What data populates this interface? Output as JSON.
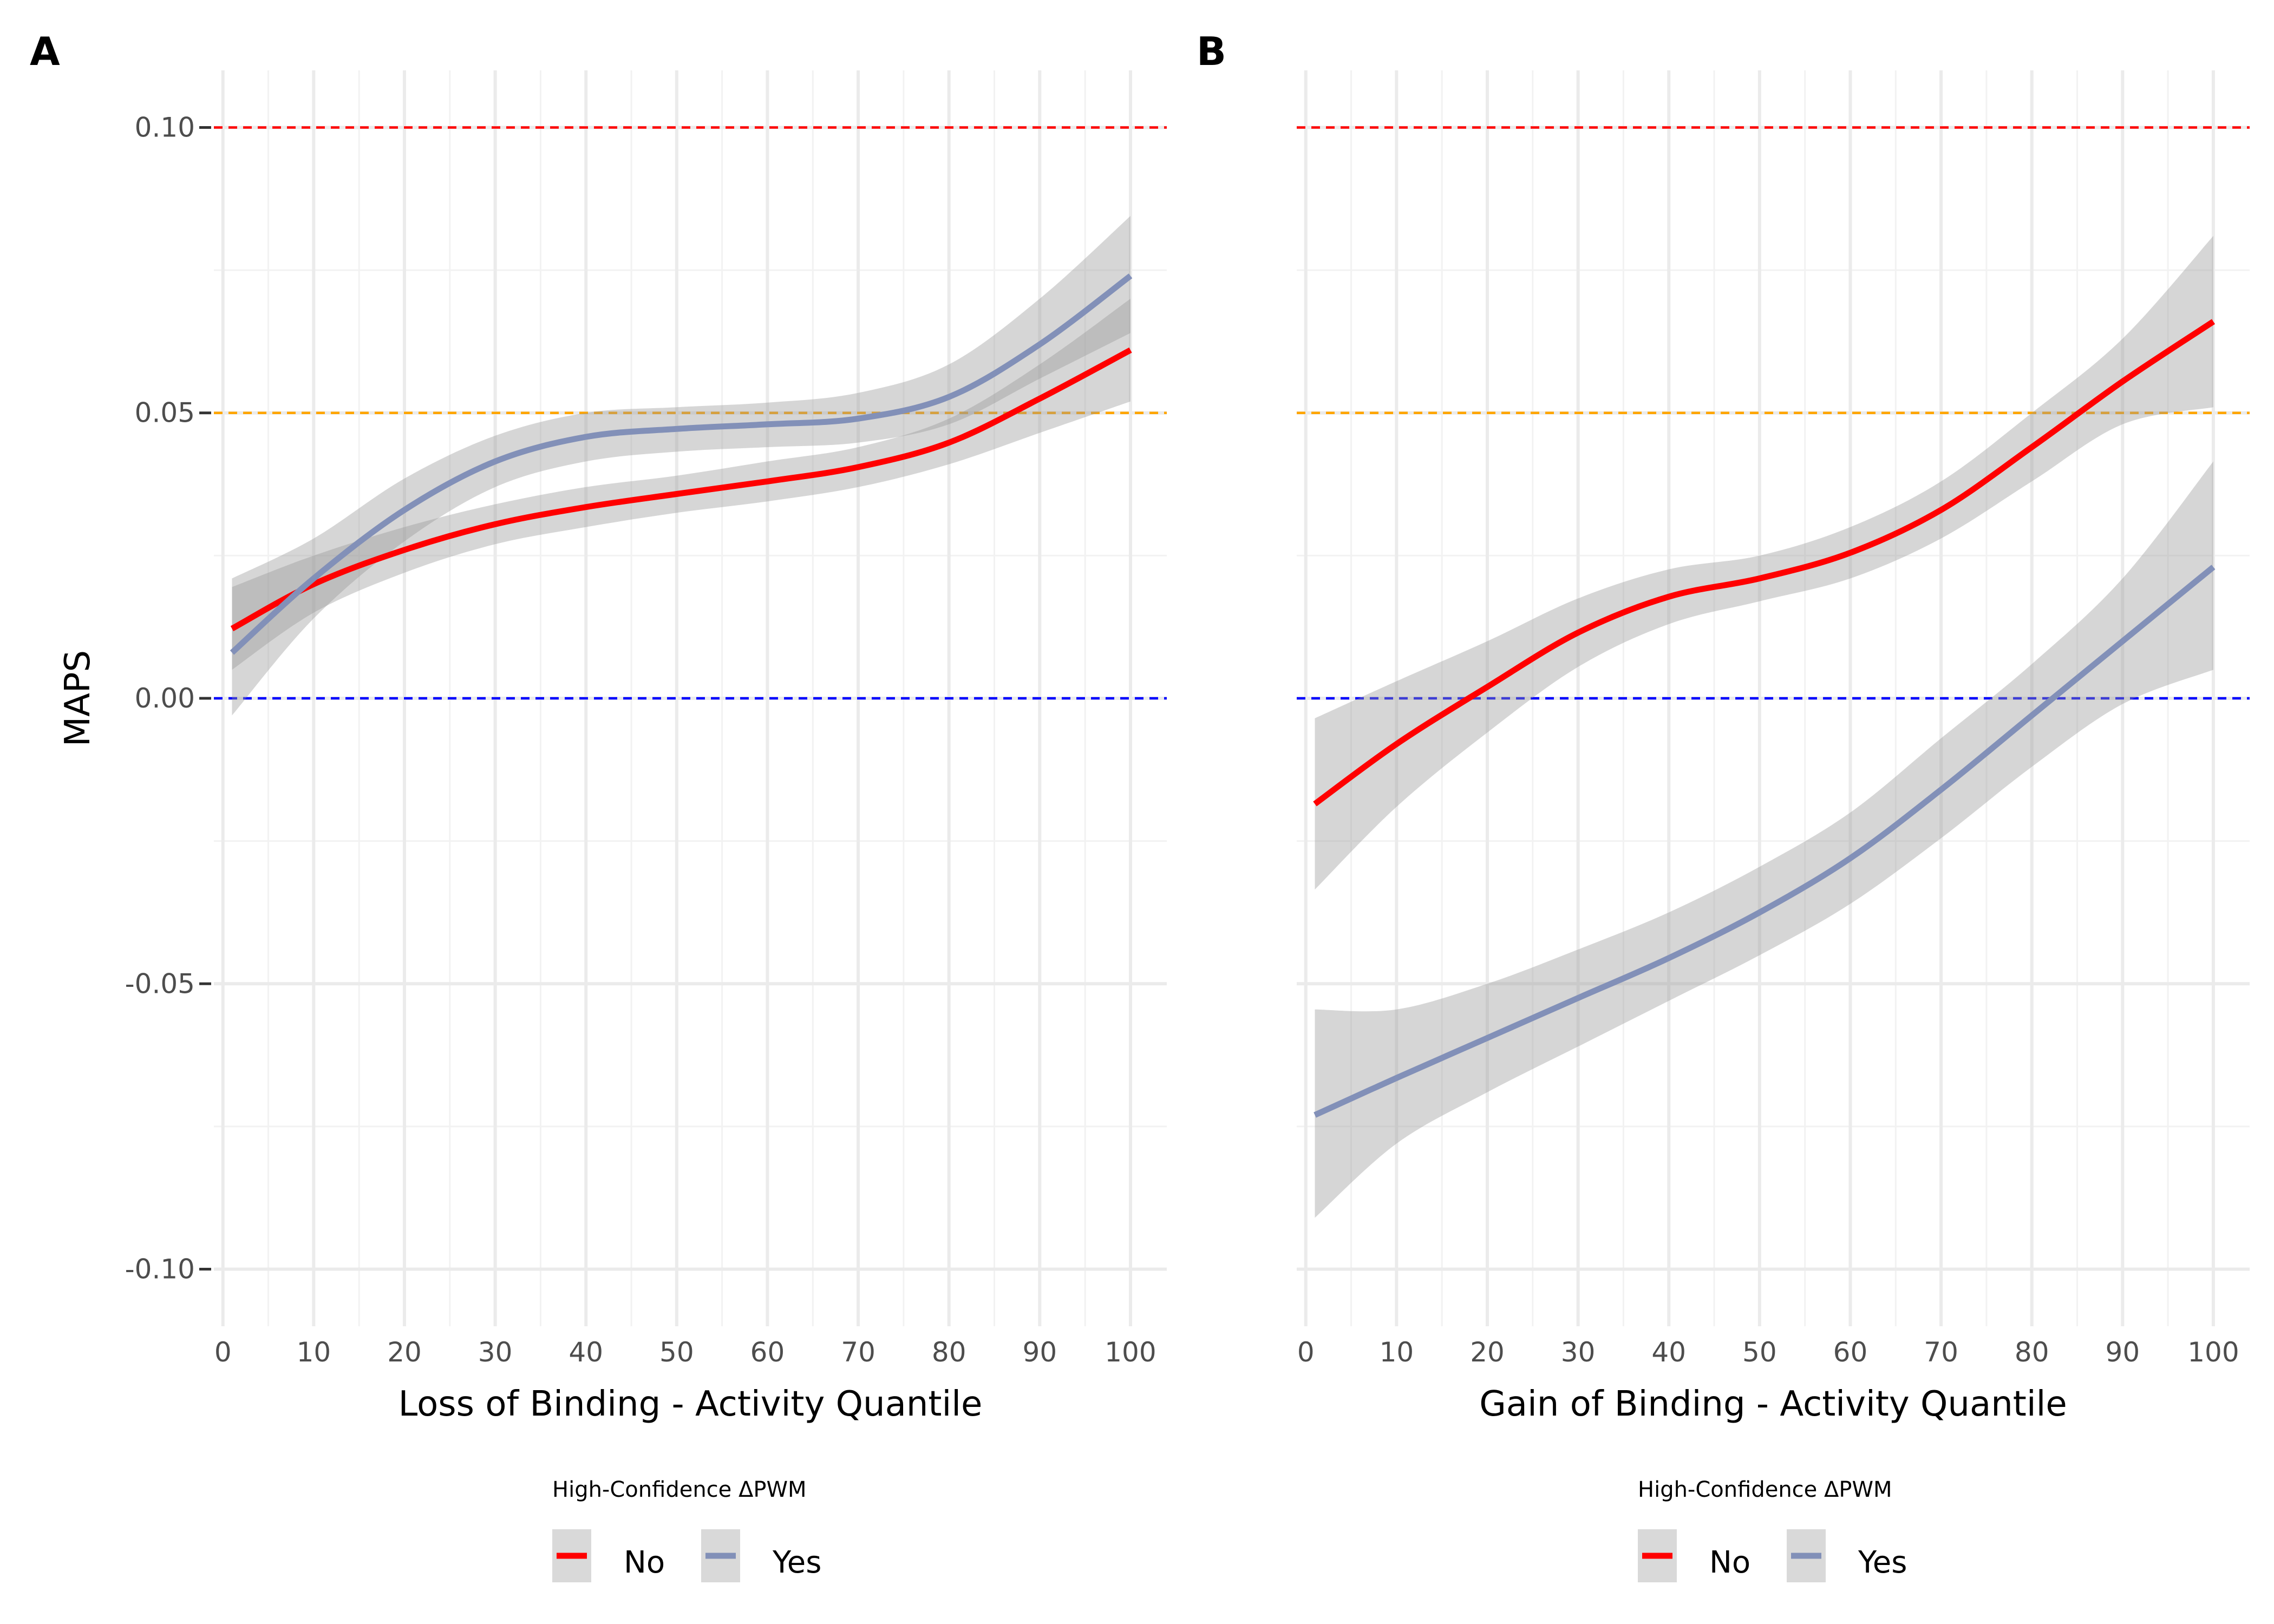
{
  "figure": {
    "panel_labels": [
      "A",
      "B"
    ]
  },
  "chart_data": [
    {
      "panel": "A",
      "type": "line",
      "xlabel": "Loss of Binding - Activity Quantile",
      "ylabel": "MAPS",
      "xlim": [
        -1,
        104
      ],
      "ylim": [
        -0.11,
        0.11
      ],
      "x_ticks": [
        0,
        10,
        20,
        30,
        40,
        50,
        60,
        70,
        80,
        90,
        100
      ],
      "y_ticks": [
        -0.1,
        -0.05,
        0.0,
        0.05,
        0.1
      ],
      "y_tick_labels": [
        "-0.10",
        "-0.05",
        "0.00",
        "0.05",
        "0.10"
      ],
      "grid": true,
      "reference_lines": [
        {
          "y": 0.1,
          "color": "#FF0000",
          "style": "dashed"
        },
        {
          "y": 0.05,
          "color": "#FFA500",
          "style": "dashed"
        },
        {
          "y": 0.0,
          "color": "#0000FF",
          "style": "dashed"
        }
      ],
      "legend": {
        "title": "High-Confidence ΔPWM",
        "position": "bottom",
        "entries": [
          "No",
          "Yes"
        ]
      },
      "series": [
        {
          "name": "No",
          "color": "#FF0000",
          "x": [
            1,
            10,
            20,
            30,
            40,
            50,
            60,
            70,
            80,
            90,
            100
          ],
          "y": [
            0.0122,
            0.02,
            0.026,
            0.0305,
            0.0335,
            0.0358,
            0.038,
            0.0405,
            0.0448,
            0.0525,
            0.061
          ],
          "ci_lower": [
            0.005,
            0.015,
            0.022,
            0.027,
            0.03,
            0.0325,
            0.0345,
            0.037,
            0.041,
            0.0465,
            0.052
          ],
          "ci_upper": [
            0.0195,
            0.025,
            0.03,
            0.034,
            0.037,
            0.039,
            0.0415,
            0.044,
            0.049,
            0.0585,
            0.07
          ]
        },
        {
          "name": "Yes",
          "color": "#8290B8",
          "x": [
            1,
            10,
            20,
            30,
            40,
            50,
            60,
            70,
            80,
            90,
            100
          ],
          "y": [
            0.008,
            0.021,
            0.033,
            0.0415,
            0.0458,
            0.0472,
            0.048,
            0.049,
            0.0528,
            0.062,
            0.074
          ],
          "ci_lower": [
            -0.003,
            0.014,
            0.0275,
            0.037,
            0.0415,
            0.0432,
            0.044,
            0.0448,
            0.048,
            0.056,
            0.064
          ],
          "ci_upper": [
            0.021,
            0.028,
            0.0385,
            0.046,
            0.05,
            0.051,
            0.0518,
            0.0535,
            0.0585,
            0.07,
            0.0845
          ]
        }
      ]
    },
    {
      "panel": "B",
      "type": "line",
      "xlabel": "Gain of Binding - Activity Quantile",
      "xlim": [
        -1,
        104
      ],
      "ylim": [
        -0.11,
        0.11
      ],
      "x_ticks": [
        0,
        10,
        20,
        30,
        40,
        50,
        60,
        70,
        80,
        90,
        100
      ],
      "grid": true,
      "reference_lines": [
        {
          "y": 0.1,
          "color": "#FF0000",
          "style": "dashed"
        },
        {
          "y": 0.05,
          "color": "#FFA500",
          "style": "dashed"
        },
        {
          "y": 0.0,
          "color": "#0000FF",
          "style": "dashed"
        }
      ],
      "legend": {
        "title": "High-Confidence ΔPWM",
        "position": "bottom",
        "entries": [
          "No",
          "Yes"
        ]
      },
      "series": [
        {
          "name": "No",
          "color": "#FF0000",
          "x": [
            1,
            10,
            20,
            30,
            40,
            50,
            60,
            70,
            80,
            90,
            100
          ],
          "y": [
            -0.0185,
            -0.008,
            0.002,
            0.0115,
            0.0178,
            0.021,
            0.0255,
            0.033,
            0.044,
            0.0555,
            0.066
          ],
          "ci_lower": [
            -0.0335,
            -0.019,
            -0.006,
            0.0055,
            0.013,
            0.017,
            0.021,
            0.028,
            0.038,
            0.048,
            0.051
          ],
          "ci_upper": [
            -0.0035,
            0.003,
            0.01,
            0.0175,
            0.0226,
            0.025,
            0.03,
            0.038,
            0.05,
            0.063,
            0.081
          ]
        },
        {
          "name": "Yes",
          "color": "#8290B8",
          "x": [
            1,
            10,
            20,
            30,
            40,
            50,
            60,
            70,
            80,
            90,
            100
          ],
          "y": [
            -0.073,
            -0.0665,
            -0.0595,
            -0.0525,
            -0.0455,
            -0.0375,
            -0.028,
            -0.016,
            -0.003,
            0.01,
            0.023
          ],
          "ci_lower": [
            -0.091,
            -0.078,
            -0.069,
            -0.061,
            -0.053,
            -0.045,
            -0.036,
            -0.0245,
            -0.012,
            -0.001,
            0.005
          ],
          "ci_upper": [
            -0.0545,
            -0.0545,
            -0.05,
            -0.044,
            -0.0375,
            -0.0295,
            -0.02,
            -0.007,
            0.006,
            0.021,
            0.0415
          ]
        }
      ]
    }
  ]
}
